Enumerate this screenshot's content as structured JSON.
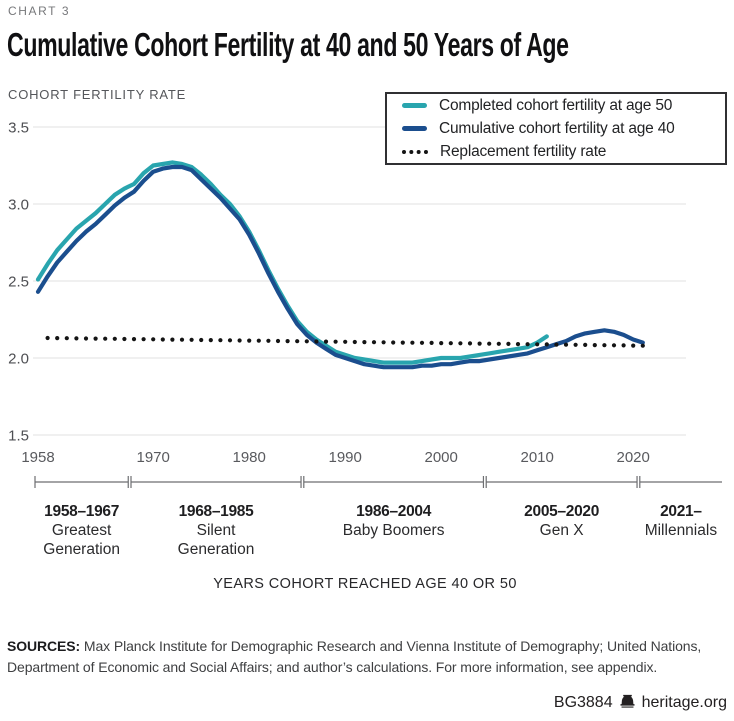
{
  "header": {
    "kicker": "CHART 3",
    "title": "Cumulative Cohort Fertility at 40 and 50 Years of Age"
  },
  "chart_data": {
    "type": "line",
    "title": "Cumulative Cohort Fertility at 40 and 50 Years of Age",
    "ylabel": "COHORT FERTILITY RATE",
    "xlabel": "YEARS COHORT REACHED AGE 40 OR 50",
    "ylim": [
      1.5,
      3.5
    ],
    "xlim": [
      1958,
      2022
    ],
    "y_ticks": [
      3.5,
      3.0,
      2.5,
      2.0,
      1.5
    ],
    "x_ticks": [
      1958,
      1970,
      1980,
      1990,
      2000,
      2010,
      2020
    ],
    "grid": "horizontal",
    "legend_position": "top-right",
    "colors": {
      "age50": "#29a5ae",
      "age40": "#1b4e8e",
      "replacement": "#141414",
      "gridline": "#e2e2e2"
    },
    "series": [
      {
        "name": "Completed cohort fertility at age 50",
        "color": "#29a5ae",
        "style": "solid",
        "start_year": 1958,
        "x_step": 1,
        "values": [
          2.51,
          2.61,
          2.7,
          2.77,
          2.84,
          2.89,
          2.94,
          3.0,
          3.06,
          3.1,
          3.13,
          3.2,
          3.25,
          3.26,
          3.27,
          3.26,
          3.24,
          3.19,
          3.13,
          3.06,
          3.0,
          2.92,
          2.82,
          2.7,
          2.57,
          2.45,
          2.34,
          2.24,
          2.17,
          2.12,
          2.08,
          2.04,
          2.02,
          2.0,
          1.99,
          1.98,
          1.97,
          1.97,
          1.97,
          1.97,
          1.98,
          1.99,
          2.0,
          2.0,
          2.0,
          2.01,
          2.02,
          2.03,
          2.04,
          2.05,
          2.06,
          2.07,
          2.1,
          2.14
        ]
      },
      {
        "name": "Cumulative cohort fertility at age 40",
        "color": "#1b4e8e",
        "style": "solid",
        "start_year": 1958,
        "x_step": 1,
        "values": [
          2.43,
          2.53,
          2.62,
          2.69,
          2.76,
          2.82,
          2.87,
          2.93,
          2.99,
          3.04,
          3.08,
          3.15,
          3.21,
          3.23,
          3.24,
          3.24,
          3.22,
          3.16,
          3.1,
          3.04,
          2.97,
          2.9,
          2.8,
          2.68,
          2.55,
          2.43,
          2.32,
          2.22,
          2.15,
          2.1,
          2.06,
          2.02,
          2.0,
          1.98,
          1.96,
          1.95,
          1.94,
          1.94,
          1.94,
          1.94,
          1.95,
          1.95,
          1.96,
          1.96,
          1.97,
          1.98,
          1.98,
          1.99,
          2.0,
          2.01,
          2.02,
          2.03,
          2.05,
          2.07,
          2.09,
          2.11,
          2.14,
          2.16,
          2.17,
          2.18,
          2.17,
          2.15,
          2.12,
          2.1
        ]
      },
      {
        "name": "Replacement fertility rate",
        "color": "#141414",
        "style": "dotted",
        "start_year": 1959,
        "end_year": 2021,
        "start_value": 2.13,
        "end_value": 2.08
      }
    ],
    "generations": [
      {
        "range_label": "1958–1967",
        "name_lines": [
          "Greatest",
          "Generation"
        ],
        "start": 1958,
        "end": 1967,
        "open": false
      },
      {
        "range_label": "1968–1985",
        "name_lines": [
          "Silent",
          "Generation"
        ],
        "start": 1968,
        "end": 1985,
        "open": false
      },
      {
        "range_label": "1986–2004",
        "name_lines": [
          "Baby Boomers"
        ],
        "start": 1986,
        "end": 2004,
        "open": false
      },
      {
        "range_label": "2005–2020",
        "name_lines": [
          "Gen X"
        ],
        "start": 2005,
        "end": 2020,
        "open": false
      },
      {
        "range_label": "2021–",
        "name_lines": [
          "Millennials"
        ],
        "start": 2021,
        "end": null,
        "open": true
      }
    ]
  },
  "footnote": {
    "sources_label": "SOURCES:",
    "sources_text": " Max Planck Institute for Demographic Research and Vienna Institute of Demography; United Nations, Department of Economic and Social Affairs; and author’s calculations. For more information, see appendix."
  },
  "footer": {
    "code": "BG3884",
    "site": "heritage.org",
    "bell_icon": "liberty-bell"
  }
}
